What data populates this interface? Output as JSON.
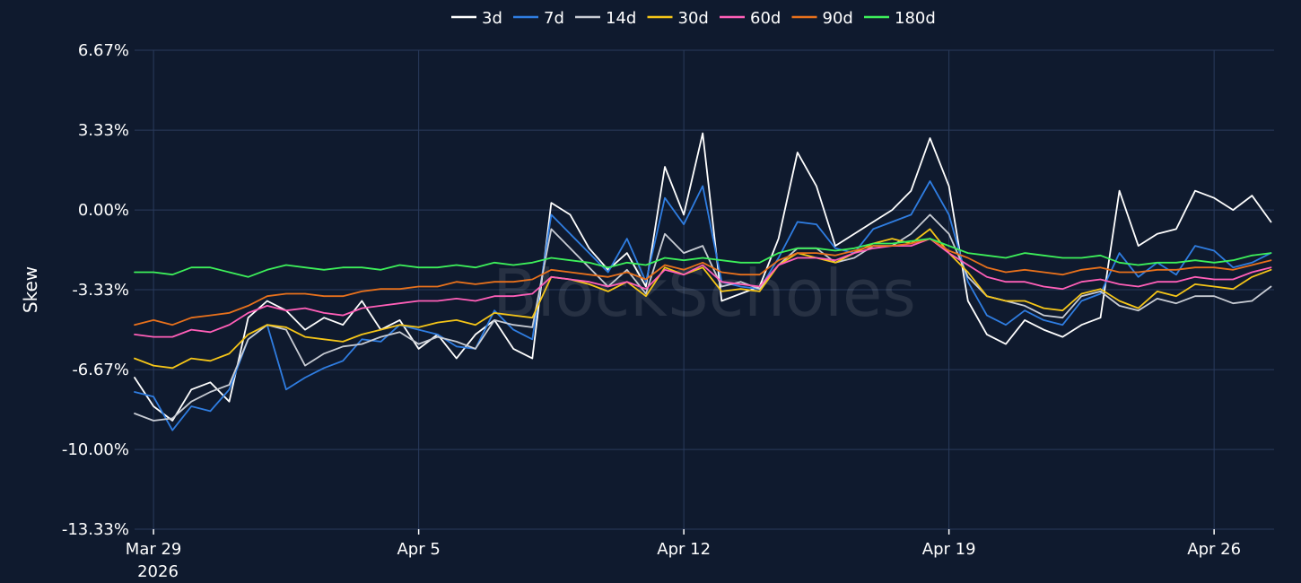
{
  "watermark": "BlockScholes",
  "chart_data": {
    "type": "line",
    "title": "",
    "xlabel": "",
    "ylabel": "Skew",
    "ylim": [
      -13.33,
      6.67
    ],
    "xlim": [
      "2026-03-28T12:00",
      "2026-04-27T14:00"
    ],
    "y_ticks": [
      6.67,
      3.33,
      0.0,
      -3.33,
      -6.67,
      -10.0,
      -13.33
    ],
    "y_tick_labels": [
      "6.67%",
      "3.33%",
      "0.00%",
      "-3.33%",
      "-6.67%",
      "-10.00%",
      "-13.33%"
    ],
    "x_ticks": [
      "2026-03-29",
      "2026-04-05",
      "2026-04-12",
      "2026-04-19",
      "2026-04-26"
    ],
    "x_tick_labels": [
      "Mar 29",
      "Apr 5",
      "Apr 12",
      "Apr 19",
      "Apr 26"
    ],
    "x_year_label": "2026",
    "grid": true,
    "legend_position": "top-center",
    "x": [
      "2026-03-28T12:00",
      "2026-03-29T00:00",
      "2026-03-29T12:00",
      "2026-03-30T00:00",
      "2026-03-30T12:00",
      "2026-03-31T00:00",
      "2026-03-31T12:00",
      "2026-04-01T00:00",
      "2026-04-01T12:00",
      "2026-04-02T00:00",
      "2026-04-02T12:00",
      "2026-04-03T00:00",
      "2026-04-03T12:00",
      "2026-04-04T00:00",
      "2026-04-04T12:00",
      "2026-04-05T00:00",
      "2026-04-05T12:00",
      "2026-04-06T00:00",
      "2026-04-06T12:00",
      "2026-04-07T00:00",
      "2026-04-07T12:00",
      "2026-04-08T00:00",
      "2026-04-08T12:00",
      "2026-04-09T00:00",
      "2026-04-09T12:00",
      "2026-04-10T00:00",
      "2026-04-10T12:00",
      "2026-04-11T00:00",
      "2026-04-11T12:00",
      "2026-04-12T00:00",
      "2026-04-12T12:00",
      "2026-04-13T00:00",
      "2026-04-13T12:00",
      "2026-04-14T00:00",
      "2026-04-14T12:00",
      "2026-04-15T00:00",
      "2026-04-15T12:00",
      "2026-04-16T00:00",
      "2026-04-16T12:00",
      "2026-04-17T00:00",
      "2026-04-17T12:00",
      "2026-04-18T00:00",
      "2026-04-18T12:00",
      "2026-04-19T00:00",
      "2026-04-19T12:00",
      "2026-04-20T00:00",
      "2026-04-20T12:00",
      "2026-04-21T00:00",
      "2026-04-21T12:00",
      "2026-04-22T00:00",
      "2026-04-22T12:00",
      "2026-04-23T00:00",
      "2026-04-23T12:00",
      "2026-04-24T00:00",
      "2026-04-24T12:00",
      "2026-04-25T00:00",
      "2026-04-25T12:00",
      "2026-04-26T00:00",
      "2026-04-26T12:00",
      "2026-04-27T00:00",
      "2026-04-27T12:00"
    ],
    "series": [
      {
        "name": "3d",
        "color": "#ffffff",
        "values": [
          -7.0,
          -8.2,
          -8.8,
          -7.5,
          -7.2,
          -8.0,
          -4.5,
          -3.8,
          -4.2,
          -5.0,
          -4.5,
          -4.8,
          -3.8,
          -5.0,
          -4.6,
          -5.8,
          -5.2,
          -6.2,
          -5.2,
          -4.6,
          -5.8,
          -6.2,
          0.3,
          -0.2,
          -1.6,
          -2.5,
          -1.8,
          -3.2,
          1.8,
          -0.2,
          3.2,
          -3.8,
          -3.5,
          -3.2,
          -1.2,
          2.4,
          1.0,
          -1.5,
          -1.0,
          -0.5,
          0.0,
          0.8,
          3.0,
          1.0,
          -3.8,
          -5.2,
          -5.6,
          -4.6,
          -5.0,
          -5.3,
          -4.8,
          -4.5,
          0.8,
          -1.5,
          -1.0,
          -0.8,
          0.8,
          0.5,
          0.0,
          0.6,
          -0.5
        ]
      },
      {
        "name": "7d",
        "color": "#2f7de1",
        "values": [
          -7.6,
          -7.8,
          -9.2,
          -8.2,
          -8.4,
          -7.5,
          -5.4,
          -4.8,
          -7.5,
          -7.0,
          -6.6,
          -6.3,
          -5.4,
          -5.5,
          -4.8,
          -5.0,
          -5.2,
          -5.7,
          -5.8,
          -4.2,
          -5.0,
          -5.4,
          -0.2,
          -1.0,
          -1.8,
          -2.6,
          -1.2,
          -3.0,
          0.5,
          -0.6,
          1.0,
          -3.0,
          -3.2,
          -3.3,
          -2.0,
          -0.5,
          -0.6,
          -1.6,
          -1.8,
          -0.8,
          -0.5,
          -0.2,
          1.2,
          -0.2,
          -3.0,
          -4.4,
          -4.8,
          -4.2,
          -4.6,
          -4.8,
          -3.8,
          -3.5,
          -1.8,
          -2.8,
          -2.2,
          -2.7,
          -1.5,
          -1.7,
          -2.4,
          -2.2,
          -1.8
        ]
      },
      {
        "name": "14d",
        "color": "#c8ccd4",
        "values": [
          -8.5,
          -8.8,
          -8.7,
          -8.0,
          -7.6,
          -7.3,
          -5.4,
          -4.8,
          -5.0,
          -6.5,
          -6.0,
          -5.7,
          -5.6,
          -5.3,
          -5.1,
          -5.6,
          -5.3,
          -5.5,
          -5.8,
          -4.6,
          -4.8,
          -4.9,
          -0.8,
          -1.6,
          -2.4,
          -3.2,
          -2.5,
          -3.5,
          -1.0,
          -1.8,
          -1.5,
          -3.2,
          -3.0,
          -3.3,
          -2.3,
          -1.6,
          -1.6,
          -2.2,
          -2.0,
          -1.5,
          -1.5,
          -1.0,
          -0.2,
          -1.0,
          -2.8,
          -3.6,
          -3.8,
          -4.0,
          -4.4,
          -4.5,
          -3.6,
          -3.4,
          -4.0,
          -4.2,
          -3.7,
          -3.9,
          -3.6,
          -3.6,
          -3.9,
          -3.8,
          -3.2
        ]
      },
      {
        "name": "30d",
        "color": "#f5c518",
        "values": [
          -6.2,
          -6.5,
          -6.6,
          -6.2,
          -6.3,
          -6.0,
          -5.2,
          -4.8,
          -4.9,
          -5.3,
          -5.4,
          -5.5,
          -5.2,
          -5.0,
          -4.8,
          -4.9,
          -4.7,
          -4.6,
          -4.8,
          -4.3,
          -4.4,
          -4.5,
          -2.8,
          -2.9,
          -3.1,
          -3.4,
          -3.0,
          -3.6,
          -2.4,
          -2.7,
          -2.4,
          -3.4,
          -3.3,
          -3.4,
          -2.3,
          -1.8,
          -2.0,
          -2.2,
          -1.8,
          -1.4,
          -1.2,
          -1.4,
          -0.8,
          -1.8,
          -2.6,
          -3.6,
          -3.8,
          -3.8,
          -4.1,
          -4.2,
          -3.5,
          -3.3,
          -3.8,
          -4.1,
          -3.4,
          -3.6,
          -3.1,
          -3.2,
          -3.3,
          -2.8,
          -2.5
        ]
      },
      {
        "name": "60d",
        "color": "#ff5fb8",
        "values": [
          -5.2,
          -5.3,
          -5.3,
          -5.0,
          -5.1,
          -4.8,
          -4.3,
          -4.0,
          -4.2,
          -4.1,
          -4.3,
          -4.4,
          -4.1,
          -4.0,
          -3.9,
          -3.8,
          -3.8,
          -3.7,
          -3.8,
          -3.6,
          -3.6,
          -3.5,
          -2.8,
          -2.9,
          -3.0,
          -3.2,
          -3.0,
          -3.3,
          -2.5,
          -2.7,
          -2.3,
          -3.0,
          -3.1,
          -3.2,
          -2.3,
          -2.0,
          -2.0,
          -2.1,
          -1.8,
          -1.6,
          -1.5,
          -1.5,
          -1.2,
          -1.8,
          -2.3,
          -2.8,
          -3.0,
          -3.0,
          -3.2,
          -3.3,
          -3.0,
          -2.9,
          -3.1,
          -3.2,
          -3.0,
          -3.0,
          -2.8,
          -2.9,
          -2.9,
          -2.6,
          -2.4
        ]
      },
      {
        "name": "90d",
        "color": "#e8711c",
        "values": [
          -4.8,
          -4.6,
          -4.8,
          -4.5,
          -4.4,
          -4.3,
          -4.0,
          -3.6,
          -3.5,
          -3.5,
          -3.6,
          -3.6,
          -3.4,
          -3.3,
          -3.3,
          -3.2,
          -3.2,
          -3.0,
          -3.1,
          -3.0,
          -3.0,
          -2.9,
          -2.5,
          -2.6,
          -2.7,
          -2.8,
          -2.6,
          -2.9,
          -2.3,
          -2.5,
          -2.2,
          -2.6,
          -2.7,
          -2.7,
          -2.1,
          -1.8,
          -1.8,
          -1.9,
          -1.7,
          -1.5,
          -1.5,
          -1.4,
          -1.2,
          -1.7,
          -2.0,
          -2.4,
          -2.6,
          -2.5,
          -2.6,
          -2.7,
          -2.5,
          -2.4,
          -2.6,
          -2.6,
          -2.5,
          -2.5,
          -2.4,
          -2.4,
          -2.5,
          -2.3,
          -2.1
        ]
      },
      {
        "name": "180d",
        "color": "#3df05a",
        "values": [
          -2.6,
          -2.6,
          -2.7,
          -2.4,
          -2.4,
          -2.6,
          -2.8,
          -2.5,
          -2.3,
          -2.4,
          -2.5,
          -2.4,
          -2.4,
          -2.5,
          -2.3,
          -2.4,
          -2.4,
          -2.3,
          -2.4,
          -2.2,
          -2.3,
          -2.2,
          -2.0,
          -2.1,
          -2.2,
          -2.4,
          -2.2,
          -2.3,
          -2.0,
          -2.1,
          -2.0,
          -2.1,
          -2.2,
          -2.2,
          -1.8,
          -1.6,
          -1.6,
          -1.7,
          -1.6,
          -1.4,
          -1.4,
          -1.3,
          -1.2,
          -1.5,
          -1.8,
          -1.9,
          -2.0,
          -1.8,
          -1.9,
          -2.0,
          -2.0,
          -1.9,
          -2.2,
          -2.3,
          -2.2,
          -2.2,
          -2.1,
          -2.2,
          -2.1,
          -1.9,
          -1.8
        ]
      }
    ]
  }
}
